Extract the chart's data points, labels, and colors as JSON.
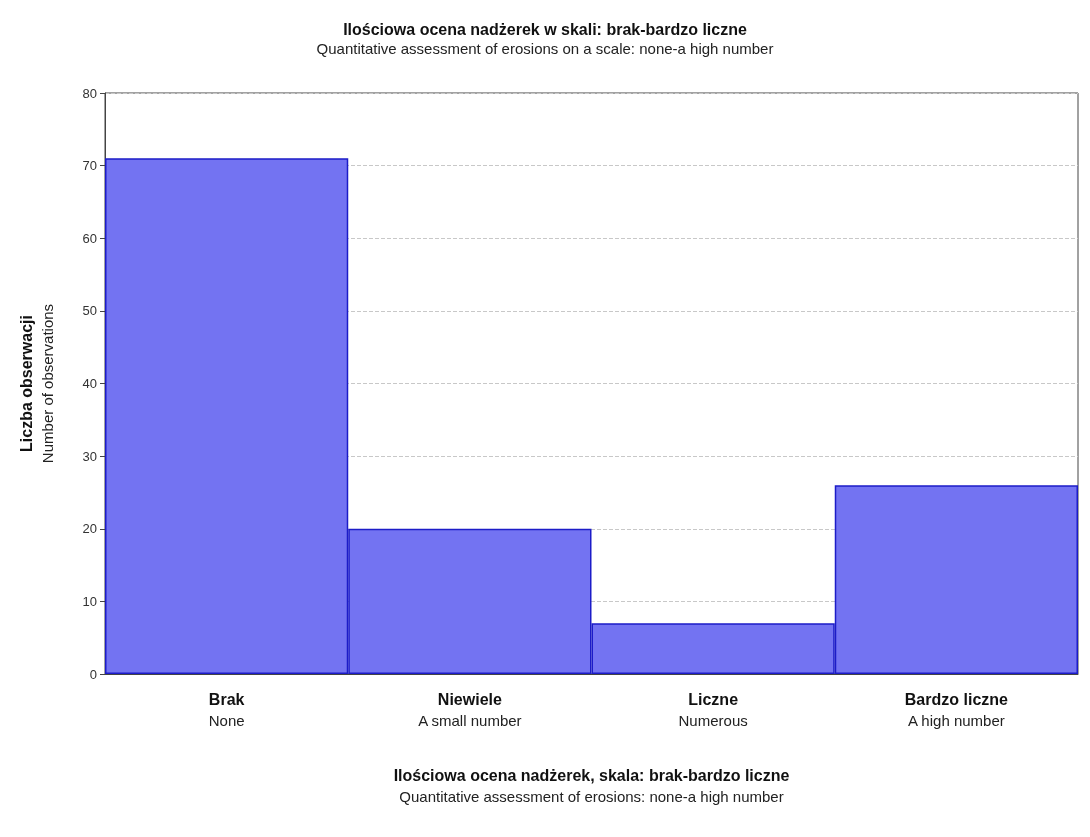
{
  "chart_data": {
    "type": "bar",
    "title": "Ilościowa ocena nadżerek w skali: brak-bardzo liczne",
    "subtitle": "Quantitative assessment of erosions on a scale: none-a high number",
    "xlabel": "Ilościowa ocena nadżerek, skala: brak-bardzo liczne\nQuantitative assessment of erosions: none-a high number",
    "ylabel": "Liczba obserwacji\nNumber of observations",
    "categories": [
      "Brak\nNone",
      "Niewiele\nA small number",
      "Liczne\nNumerous",
      "Bardzo liczne\nA high number"
    ],
    "values": [
      71,
      20,
      7,
      26
    ],
    "color": "#7373f2",
    "ylim": [
      0,
      80
    ],
    "yticks": [
      0,
      10,
      20,
      30,
      40,
      50,
      60,
      70,
      80
    ],
    "grid": "y"
  }
}
